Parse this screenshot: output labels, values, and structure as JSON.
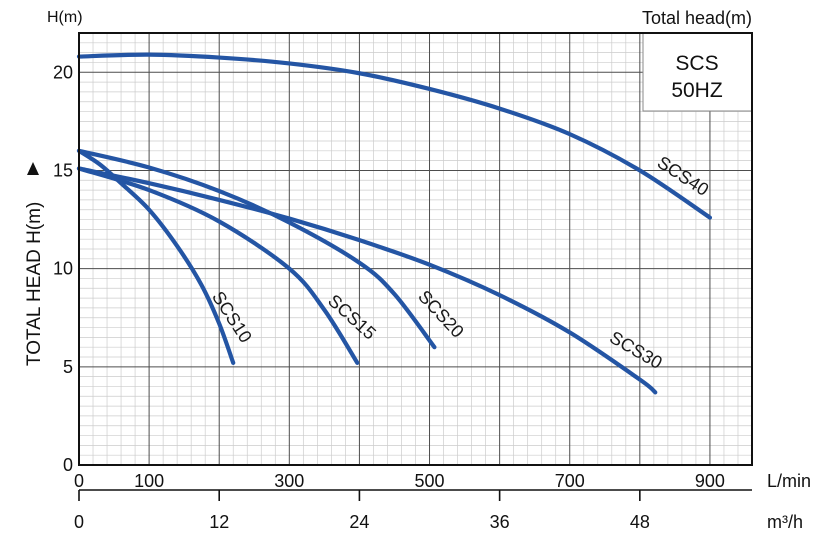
{
  "chart_data": {
    "type": "line",
    "header_left": "H(m)",
    "header_right": "Total head(m)",
    "ylabel": "TOTAL HEAD H(m)",
    "xlabel": "L/min",
    "x2label": "m³/h",
    "xlim": [
      0,
      960
    ],
    "ylim": [
      0,
      22
    ],
    "xticks": [
      0,
      100,
      300,
      500,
      700,
      900
    ],
    "x2ticks": [
      0,
      12,
      24,
      36,
      48
    ],
    "yticks": [
      0,
      5,
      10,
      15,
      20
    ],
    "grid": true,
    "legend": {
      "line1": "SCS",
      "line2": "50HZ"
    },
    "series": [
      {
        "name": "SCS10",
        "x": [
          0,
          30,
          60,
          100,
          140,
          175,
          200,
          220
        ],
        "y": [
          16.0,
          15.3,
          14.35,
          13.0,
          11.15,
          9.15,
          7.2,
          5.2
        ]
      },
      {
        "name": "SCS15",
        "x": [
          0,
          100,
          200,
          300,
          350,
          397
        ],
        "y": [
          15.1,
          14.0,
          12.4,
          10.0,
          7.9,
          5.2
        ]
      },
      {
        "name": "SCS20",
        "x": [
          0,
          100,
          200,
          300,
          400,
          450,
          507
        ],
        "y": [
          16.0,
          15.15,
          13.95,
          12.35,
          10.3,
          8.7,
          6.0
        ]
      },
      {
        "name": "SCS30",
        "x": [
          0,
          100,
          200,
          300,
          400,
          500,
          600,
          700,
          800,
          822
        ],
        "y": [
          15.1,
          14.35,
          13.5,
          12.55,
          11.45,
          10.2,
          8.65,
          6.75,
          4.35,
          3.7
        ]
      },
      {
        "name": "SCS40",
        "x": [
          0,
          100,
          200,
          300,
          400,
          500,
          600,
          700,
          800,
          900
        ],
        "y": [
          20.8,
          20.9,
          20.75,
          20.45,
          19.95,
          19.15,
          18.15,
          16.85,
          15.0,
          12.6
        ]
      }
    ]
  },
  "colors": {
    "curve": "#2455a4",
    "grid_major": "#4d4d4d",
    "grid_minor": "#cccccc",
    "frame": "#111111",
    "legend_border": "#8a8a8a"
  }
}
